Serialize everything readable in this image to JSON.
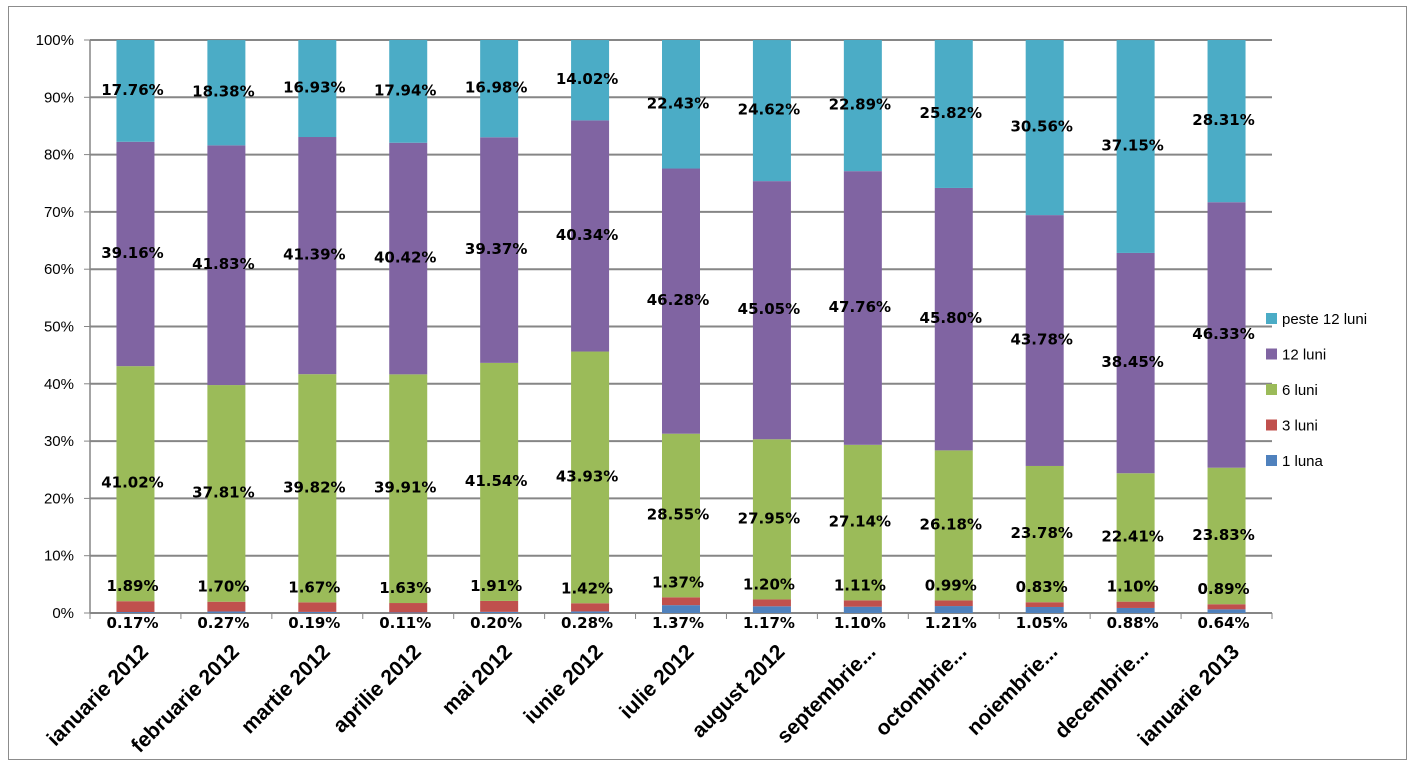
{
  "chart_data": {
    "type": "bar",
    "stacked": true,
    "percent_stacked": true,
    "title": "",
    "xlabel": "",
    "ylabel": "",
    "ylim": [
      0,
      100
    ],
    "y_ticks": [
      "0%",
      "10%",
      "20%",
      "30%",
      "40%",
      "50%",
      "60%",
      "70%",
      "80%",
      "90%",
      "100%"
    ],
    "grid": true,
    "legend_position": "right",
    "categories": [
      "ianuarie 2012",
      "februarie 2012",
      "martie 2012",
      "aprilie 2012",
      "mai 2012",
      "iunie 2012",
      "iulie 2012",
      "august 2012",
      "septembrie...",
      "octombrie...",
      "noiembrie...",
      "decembrie...",
      "ianuarie 2013"
    ],
    "series": [
      {
        "name": "1 luna",
        "color": "#4F81BD",
        "values": [
          0.17,
          0.27,
          0.19,
          0.11,
          0.2,
          0.28,
          1.37,
          1.17,
          1.1,
          1.21,
          1.05,
          0.88,
          0.64
        ],
        "labels": [
          "0.17%",
          "0.27%",
          "0.19%",
          "0.11%",
          "0.20%",
          "0.28%",
          "1.37%",
          "1.17%",
          "1.10%",
          "1.21%",
          "1.05%",
          "0.88%",
          "0.64%"
        ]
      },
      {
        "name": "3 luni",
        "color": "#C0504D",
        "values": [
          1.89,
          1.7,
          1.67,
          1.63,
          1.91,
          1.42,
          1.37,
          1.2,
          1.11,
          0.99,
          0.83,
          1.1,
          0.89
        ],
        "labels": [
          "1.89%",
          "1.70%",
          "1.67%",
          "1.63%",
          "1.91%",
          "1.42%",
          "1.37%",
          "1.20%",
          "1.11%",
          "0.99%",
          "0.83%",
          "1.10%",
          "0.89%"
        ]
      },
      {
        "name": "6 luni",
        "color": "#9BBB59",
        "values": [
          41.02,
          37.81,
          39.82,
          39.91,
          41.54,
          43.93,
          28.55,
          27.95,
          27.14,
          26.18,
          23.78,
          22.41,
          23.83
        ],
        "labels": [
          "41.02%",
          "37.81%",
          "39.82%",
          "39.91%",
          "41.54%",
          "43.93%",
          "28.55%",
          "27.95%",
          "27.14%",
          "26.18%",
          "23.78%",
          "22.41%",
          "23.83%"
        ]
      },
      {
        "name": "12 luni",
        "color": "#8064A2",
        "values": [
          39.16,
          41.83,
          41.39,
          40.42,
          39.37,
          40.34,
          46.28,
          45.05,
          47.76,
          45.8,
          43.78,
          38.45,
          46.33
        ],
        "labels": [
          "39.16%",
          "41.83%",
          "41.39%",
          "40.42%",
          "39.37%",
          "40.34%",
          "46.28%",
          "45.05%",
          "47.76%",
          "45.80%",
          "43.78%",
          "38.45%",
          "46.33%"
        ]
      },
      {
        "name": "peste 12 luni",
        "color": "#4BACC6",
        "values": [
          17.76,
          18.38,
          16.93,
          17.94,
          16.98,
          14.02,
          22.43,
          24.62,
          22.89,
          25.82,
          30.56,
          37.15,
          28.31
        ],
        "labels": [
          "17.76%",
          "18.38%",
          "16.93%",
          "17.94%",
          "16.98%",
          "14.02%",
          "22.43%",
          "24.62%",
          "22.89%",
          "25.82%",
          "30.56%",
          "37.15%",
          "28.31%"
        ]
      }
    ],
    "legend_order": [
      "peste 12 luni",
      "12 luni",
      "6 luni",
      "3 luni",
      "1 luna"
    ]
  }
}
